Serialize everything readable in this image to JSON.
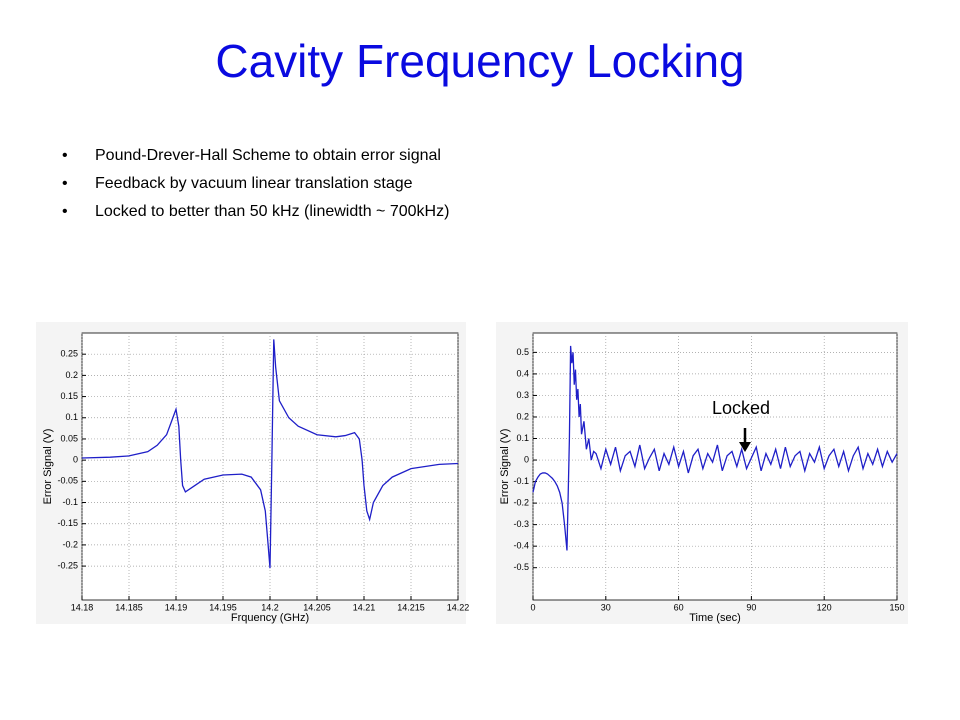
{
  "slide": {
    "title": "Cavity Frequency Locking",
    "bullets": [
      "Pound-Drever-Hall Scheme to obtain error signal",
      "Feedback by vacuum linear translation stage",
      "Locked to better than 50 kHz (linewidth ~ 700kHz)"
    ]
  },
  "chart_data": [
    {
      "type": "line",
      "xlabel": "Frquency (GHz)",
      "ylabel": "Error Signal (V)",
      "color": "#1f1fc8",
      "grid": true,
      "xlim": [
        14.18,
        14.22
      ],
      "xticks": [
        14.18,
        14.185,
        14.19,
        14.195,
        14.2,
        14.205,
        14.21,
        14.215,
        14.22
      ],
      "ylim": [
        -0.33,
        0.3
      ],
      "yticks": [
        -0.25,
        -0.2,
        -0.15,
        -0.1,
        -0.05,
        0,
        0.05,
        0.1,
        0.15,
        0.2,
        0.25
      ],
      "x": [
        14.18,
        14.183,
        14.185,
        14.187,
        14.188,
        14.189,
        14.1895,
        14.19,
        14.1903,
        14.1905,
        14.1907,
        14.191,
        14.192,
        14.193,
        14.195,
        14.197,
        14.198,
        14.199,
        14.1995,
        14.1998,
        14.2,
        14.2002,
        14.2004,
        14.2006,
        14.201,
        14.202,
        14.203,
        14.205,
        14.207,
        14.208,
        14.209,
        14.2095,
        14.2098,
        14.21,
        14.2103,
        14.2106,
        14.211,
        14.212,
        14.213,
        14.215,
        14.218,
        14.22
      ],
      "values": [
        0.005,
        0.007,
        0.01,
        0.02,
        0.035,
        0.06,
        0.09,
        0.12,
        0.08,
        0.0,
        -0.06,
        -0.075,
        -0.06,
        -0.045,
        -0.035,
        -0.033,
        -0.04,
        -0.07,
        -0.12,
        -0.2,
        -0.255,
        0.0,
        0.285,
        0.22,
        0.14,
        0.1,
        0.08,
        0.06,
        0.055,
        0.058,
        0.065,
        0.05,
        0.0,
        -0.06,
        -0.12,
        -0.14,
        -0.1,
        -0.06,
        -0.04,
        -0.02,
        -0.01,
        -0.008
      ]
    },
    {
      "type": "line",
      "xlabel": "Time (sec)",
      "ylabel": "Error Signal (V)",
      "color": "#1f1fc8",
      "grid": true,
      "annotation": "Locked",
      "xlim": [
        0,
        150
      ],
      "xticks": [
        0,
        30,
        60,
        90,
        120,
        150
      ],
      "ylim": [
        -0.65,
        0.59
      ],
      "yticks": [
        -0.5,
        -0.4,
        -0.3,
        -0.2,
        -0.1,
        0,
        0.1,
        0.2,
        0.3,
        0.4,
        0.5
      ],
      "x": [
        0,
        1,
        2,
        3,
        4,
        5,
        6,
        7,
        8,
        9,
        10,
        11,
        12,
        13,
        14,
        15,
        15.5,
        16,
        16.5,
        17,
        17.5,
        18,
        18.5,
        19,
        19.5,
        20,
        21,
        22,
        23,
        24,
        25,
        26,
        28,
        30,
        32,
        34,
        36,
        38,
        40,
        42,
        44,
        46,
        48,
        50,
        52,
        54,
        56,
        58,
        60,
        62,
        64,
        66,
        68,
        70,
        72,
        74,
        76,
        78,
        80,
        82,
        84,
        86,
        88,
        90,
        92,
        94,
        96,
        98,
        100,
        102,
        104,
        106,
        108,
        110,
        112,
        114,
        116,
        118,
        120,
        122,
        124,
        126,
        128,
        130,
        132,
        134,
        136,
        138,
        140,
        142,
        144,
        146,
        148,
        150
      ],
      "values": [
        -0.15,
        -0.1,
        -0.08,
        -0.065,
        -0.06,
        -0.06,
        -0.065,
        -0.075,
        -0.085,
        -0.1,
        -0.12,
        -0.15,
        -0.2,
        -0.3,
        -0.42,
        0.1,
        0.53,
        0.45,
        0.5,
        0.35,
        0.42,
        0.28,
        0.33,
        0.2,
        0.26,
        0.12,
        0.18,
        0.05,
        0.1,
        0.0,
        0.04,
        0.03,
        -0.04,
        0.05,
        -0.02,
        0.06,
        -0.05,
        0.02,
        0.04,
        -0.03,
        0.07,
        -0.04,
        0.01,
        0.05,
        -0.05,
        0.03,
        -0.02,
        0.06,
        -0.03,
        0.04,
        -0.06,
        0.02,
        0.05,
        -0.04,
        0.03,
        -0.01,
        0.07,
        -0.05,
        0.02,
        0.04,
        -0.03,
        0.05,
        -0.04,
        0.01,
        0.06,
        -0.05,
        0.03,
        -0.02,
        0.05,
        -0.04,
        0.06,
        -0.03,
        0.02,
        0.04,
        -0.05,
        0.03,
        -0.01,
        0.06,
        -0.04,
        0.02,
        0.05,
        -0.03,
        0.04,
        -0.05,
        0.02,
        0.06,
        -0.04,
        0.03,
        -0.02,
        0.05,
        -0.03,
        0.04,
        -0.01,
        0.03
      ]
    }
  ]
}
